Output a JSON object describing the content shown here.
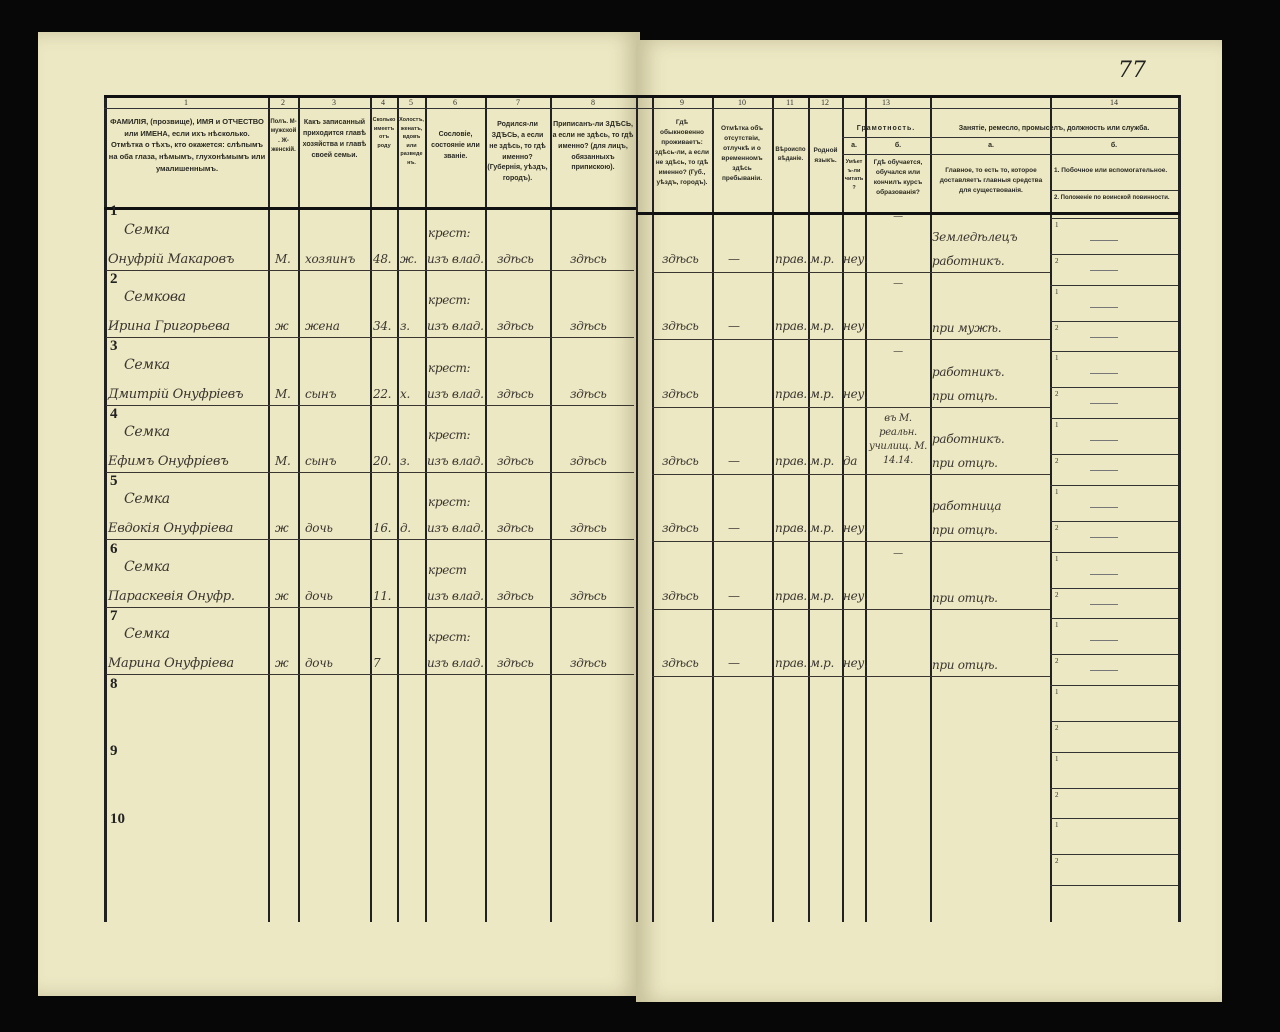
{
  "folio": "77",
  "header": {
    "col_numbers": [
      "1",
      "2",
      "3",
      "4",
      "5",
      "6",
      "7",
      "8",
      "9",
      "10",
      "11",
      "12",
      "13",
      "14"
    ],
    "col1": "ФАМИЛІЯ, (прозвище), ИМЯ и ОТЧЕСТВО или ИМЕНА, если ихъ нѣсколько. Отмѣтка о тѣхъ, кто окажется: слѣпымъ на оба глаза, нѣмымъ, глухонѣмымъ или умалишеннымъ.",
    "col2": "Полъ. М-мужской. Ж-женскій.",
    "col3": "Какъ записанный приходится главѣ хозяйства и главѣ своей семьи.",
    "col4": "Сколько имеетъ отъ роду",
    "col5": "Холостъ, женатъ, вдовъ или разведенъ.",
    "col6": "Сословіе, состояніе или званіе.",
    "col7": "Родился-ли ЗДѢСЬ, а если не здѣсь, то гдѣ именно? (Губернія, уѣздъ, городъ).",
    "col8": "Приписанъ-ли ЗДѢСЬ, а если не здѣсь, то гдѣ именно? (для лицъ, обязанныхъ припискою).",
    "col9": "Гдѣ обыкновенно проживаетъ: здѣсь-ли, а если не здѣсь, то гдѣ именно? (Губ., уѣздъ, городъ).",
    "col10": "Отмѣтка объ отсутствіи, отлучкѣ и о временномъ здѣсь пребываніи.",
    "col11": "Вѣроисповѣданіе.",
    "col12": "Родной языкъ.",
    "col13": "Грамотность.",
    "col13a_label": "а.",
    "col13a": "Умѣетъ-ли читать?",
    "col13b_label": "б.",
    "col13b": "Гдѣ обучается, обучался или кончилъ курсъ образованія?",
    "col14": "Занятіе, ремесло, промыселъ, должность или служба.",
    "col14a_label": "а.",
    "col14a": "Главное, то есть то, которое доставляетъ главныя средства для существованія.",
    "col14b_label": "б.",
    "col14b_1": "1. Побочное или вспомогательное.",
    "col14b_2": "2. Положеніе по воинской повинности."
  },
  "row_numbers": [
    "1",
    "2",
    "3",
    "4",
    "5",
    "6",
    "7",
    "8",
    "9",
    "10"
  ],
  "subrow_labels": [
    "1",
    "2"
  ],
  "entries": [
    {
      "surname": "Семка",
      "name": "Онуфрій Макаровъ",
      "sex": "М.",
      "relation": "хозяинъ",
      "age": "48.",
      "marital": "ж.",
      "estate_1": "крест:",
      "estate_2": "изъ влад.",
      "born": "здѣсь",
      "registered": "здѣсь",
      "residence": "здѣсь",
      "absence": "—",
      "religion": "прав.",
      "language": "м.р.",
      "literate": "неу.",
      "education": "—",
      "occupation_1": "Земледѣлецъ",
      "occupation_2": "работникъ."
    },
    {
      "surname": "Семкова",
      "name": "Ирина Григорьева",
      "sex": "ж",
      "relation": "жена",
      "age": "34.",
      "marital": "з.",
      "estate_1": "крест:",
      "estate_2": "изъ влад.",
      "born": "здѣсь",
      "registered": "здѣсь",
      "residence": "здѣсь",
      "absence": "—",
      "religion": "прав.",
      "language": "м.р.",
      "literate": "неу.",
      "education": "—",
      "occupation_1": "",
      "occupation_2": "при мужѣ."
    },
    {
      "surname": "Семка",
      "name": "Дмитрій Онуфріевъ",
      "sex": "М.",
      "relation": "сынъ",
      "age": "22.",
      "marital": "х.",
      "estate_1": "крест:",
      "estate_2": "изъ влад.",
      "born": "здѣсь",
      "registered": "здѣсь",
      "residence": "здѣсь",
      "absence": "",
      "religion": "прав.",
      "language": "м.р.",
      "literate": "неу.",
      "education": "—",
      "occupation_1": "работникъ.",
      "occupation_2": "при отцѣ."
    },
    {
      "surname": "Семка",
      "name": "Ефимъ Онуфріевъ",
      "sex": "М.",
      "relation": "сынъ",
      "age": "20.",
      "marital": "з.",
      "estate_1": "крест:",
      "estate_2": "изъ влад.",
      "born": "здѣсь",
      "registered": "здѣсь",
      "residence": "здѣсь",
      "absence": "—",
      "religion": "прав.",
      "language": "м.р.",
      "literate": "да",
      "education": "въ М. реальн. училищ. М. 14.14.",
      "occupation_1": "работникъ.",
      "occupation_2": "при отцѣ."
    },
    {
      "surname": "Семка",
      "name": "Евдокія Онуфріева",
      "sex": "ж",
      "relation": "дочь",
      "age": "16.",
      "marital": "д.",
      "estate_1": "крест:",
      "estate_2": "изъ влад.",
      "born": "здѣсь",
      "registered": "здѣсь",
      "residence": "здѣсь",
      "absence": "—",
      "religion": "прав.",
      "language": "м.р.",
      "literate": "неу.",
      "education": "",
      "occupation_1": "работница",
      "occupation_2": "при отцѣ."
    },
    {
      "surname": "Семка",
      "name": "Параскевія Онуфр.",
      "sex": "ж",
      "relation": "дочь",
      "age": "11.",
      "marital": "",
      "estate_1": "крест",
      "estate_2": "изъ влад.",
      "born": "здѣсь",
      "registered": "здѣсь",
      "residence": "здѣсь",
      "absence": "—",
      "religion": "прав.",
      "language": "м.р.",
      "literate": "неу.",
      "education": "—",
      "occupation_1": "",
      "occupation_2": "при отцѣ."
    },
    {
      "surname": "Семка",
      "name": "Марина Онуфріева",
      "sex": "ж",
      "relation": "дочь",
      "age": "7",
      "marital": "",
      "estate_1": "крест:",
      "estate_2": "изъ влад.",
      "born": "здѣсь",
      "registered": "здѣсь",
      "residence": "здѣсь",
      "absence": "—",
      "religion": "прав.",
      "language": "м.р.",
      "literate": "неу.",
      "education": "",
      "occupation_1": "",
      "occupation_2": "при отцѣ."
    }
  ]
}
